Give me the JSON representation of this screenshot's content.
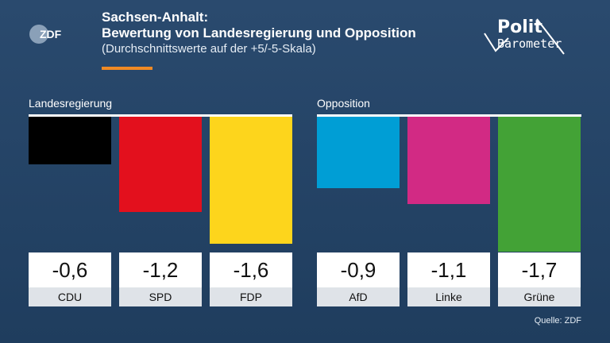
{
  "header": {
    "title_line1": "Sachsen-Anhalt:",
    "title_line2": "Bewertung von Landesregierung und Opposition",
    "subtitle": "(Durchschnittswerte auf der +5/-5-Skala)"
  },
  "brand": {
    "zdf_logo_text": "ZDF",
    "polit_line1": "Polit",
    "polit_line2": "Barometer"
  },
  "source": "Quelle: ZDF",
  "colors": {
    "CDU": "#000000",
    "SPD": "#e3101d",
    "FDP": "#fdd51c",
    "AfD": "#009ed5",
    "Linke": "#d22a84",
    "Grüne": "#43a236",
    "accent": "#f08a24"
  },
  "chart_data": {
    "type": "bar",
    "groups": [
      {
        "label": "Landesregierung",
        "categories": [
          "CDU",
          "SPD",
          "FDP"
        ]
      },
      {
        "label": "Opposition",
        "categories": [
          "AfD",
          "Linke",
          "Grüne"
        ]
      }
    ],
    "categories": [
      "CDU",
      "SPD",
      "FDP",
      "AfD",
      "Linke",
      "Grüne"
    ],
    "values": [
      -0.6,
      -1.2,
      -1.6,
      -0.9,
      -1.1,
      -1.7
    ],
    "value_labels": [
      "-0,6",
      "-1,2",
      "-1,6",
      "-0,9",
      "-1,1",
      "-1,7"
    ],
    "title": "Sachsen-Anhalt: Bewertung von Landesregierung und Opposition",
    "subtitle": "(Durchschnittswerte auf der +5/-5-Skala)",
    "ylim": [
      -5,
      5
    ]
  }
}
